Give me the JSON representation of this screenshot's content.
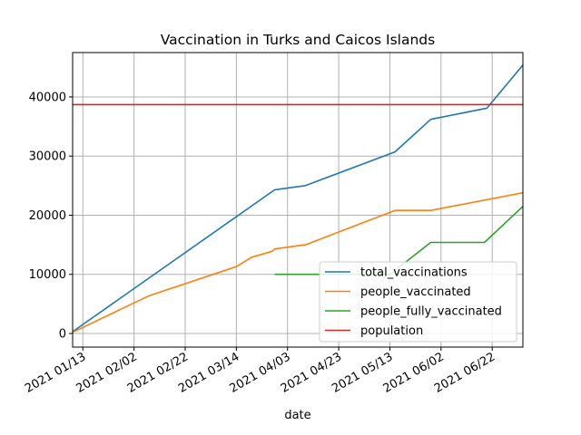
{
  "chart_data": {
    "type": "line",
    "title": "Vaccination in Turks and Caicos Islands",
    "xlabel": "date",
    "ylabel": "",
    "x_type": "date",
    "xlim": [
      "2021-01-09",
      "2021-07-04"
    ],
    "ylim": [
      -2300,
      47500
    ],
    "grid": true,
    "legend_position": "lower right",
    "x_ticks": [
      {
        "date": "2021-01-13",
        "label": "2021 01/13"
      },
      {
        "date": "2021-02-02",
        "label": "2021 02/02"
      },
      {
        "date": "2021-02-22",
        "label": "2021 02/22"
      },
      {
        "date": "2021-03-14",
        "label": "2021 03/14"
      },
      {
        "date": "2021-04-03",
        "label": "2021 04/03"
      },
      {
        "date": "2021-04-23",
        "label": "2021 04/23"
      },
      {
        "date": "2021-05-13",
        "label": "2021 05/13"
      },
      {
        "date": "2021-06-02",
        "label": "2021 06/02"
      },
      {
        "date": "2021-06-22",
        "label": "2021 06/22"
      }
    ],
    "y_ticks": [
      {
        "value": 0,
        "label": "0"
      },
      {
        "value": 10000,
        "label": "10000"
      },
      {
        "value": 20000,
        "label": "20000"
      },
      {
        "value": 30000,
        "label": "30000"
      },
      {
        "value": 40000,
        "label": "40000"
      }
    ],
    "series": [
      {
        "name": "total_vaccinations",
        "color": "#1f77b4",
        "points": [
          [
            "2021-01-09",
            300
          ],
          [
            "2021-03-29",
            24300
          ],
          [
            "2021-04-10",
            25000
          ],
          [
            "2021-05-15",
            30700
          ],
          [
            "2021-05-29",
            36200
          ],
          [
            "2021-06-20",
            38100
          ],
          [
            "2021-07-04",
            45400
          ]
        ]
      },
      {
        "name": "people_vaccinated",
        "color": "#ff7f0e",
        "points": [
          [
            "2021-01-09",
            200
          ],
          [
            "2021-02-08",
            6400
          ],
          [
            "2021-03-14",
            11300
          ],
          [
            "2021-03-20",
            12900
          ],
          [
            "2021-03-28",
            13900
          ],
          [
            "2021-03-29",
            14300
          ],
          [
            "2021-04-10",
            15000
          ],
          [
            "2021-05-15",
            20800
          ],
          [
            "2021-05-29",
            20800
          ],
          [
            "2021-07-04",
            23800
          ]
        ]
      },
      {
        "name": "people_fully_vaccinated",
        "color": "#2ca02c",
        "points": [
          [
            "2021-03-29",
            10000
          ],
          [
            "2021-05-13",
            10000
          ],
          [
            "2021-05-29",
            15400
          ],
          [
            "2021-06-19",
            15400
          ],
          [
            "2021-07-04",
            21500
          ]
        ]
      },
      {
        "name": "population",
        "color": "#d62728",
        "points": [
          [
            "2021-01-09",
            38700
          ],
          [
            "2021-07-04",
            38700
          ]
        ]
      }
    ]
  }
}
